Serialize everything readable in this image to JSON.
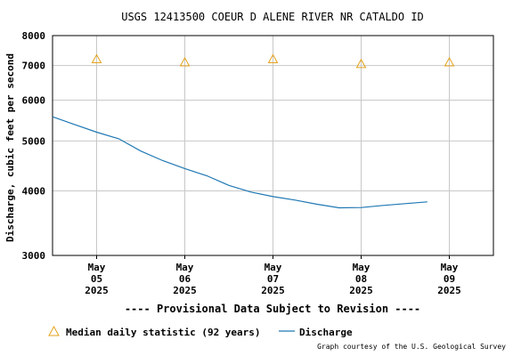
{
  "chart_data": {
    "type": "line",
    "title": "USGS 12413500 COEUR D ALENE RIVER NR CATALDO ID",
    "ylabel": "Discharge, cubic feet per second",
    "yscale": "log",
    "ylim": [
      3000,
      8000
    ],
    "yticks": [
      3000,
      4000,
      5000,
      6000,
      7000,
      8000
    ],
    "ytick_labels": [
      "3000",
      "4000",
      "5000",
      "6000",
      "7000",
      "8000"
    ],
    "xlim": [
      "2025-05-04T12:00",
      "2025-05-09T12:00"
    ],
    "x_ticks": [
      {
        "x": "2025-05-05",
        "label": [
          "May",
          "05",
          "2025"
        ]
      },
      {
        "x": "2025-05-06",
        "label": [
          "May",
          "06",
          "2025"
        ]
      },
      {
        "x": "2025-05-07",
        "label": [
          "May",
          "07",
          "2025"
        ]
      },
      {
        "x": "2025-05-08",
        "label": [
          "May",
          "08",
          "2025"
        ]
      },
      {
        "x": "2025-05-09",
        "label": [
          "May",
          "09",
          "2025"
        ]
      }
    ],
    "grid": true,
    "series": [
      {
        "name": "Median daily statistic (92 years)",
        "marker": "triangle",
        "color": "#e3a21a",
        "points": [
          {
            "x": "2025-05-05",
            "y": 7200
          },
          {
            "x": "2025-05-06",
            "y": 7100
          },
          {
            "x": "2025-05-07",
            "y": 7200
          },
          {
            "x": "2025-05-08",
            "y": 7050
          },
          {
            "x": "2025-05-09",
            "y": 7100
          }
        ]
      },
      {
        "name": "Discharge",
        "marker": "line",
        "color": "#1f78b4",
        "points": [
          {
            "x": "2025-05-04T12:00",
            "y": 5570
          },
          {
            "x": "2025-05-04T18:00",
            "y": 5380
          },
          {
            "x": "2025-05-05T00:00",
            "y": 5200
          },
          {
            "x": "2025-05-05T06:00",
            "y": 5050
          },
          {
            "x": "2025-05-05T12:00",
            "y": 4780
          },
          {
            "x": "2025-05-05T18:00",
            "y": 4580
          },
          {
            "x": "2025-05-06T00:00",
            "y": 4420
          },
          {
            "x": "2025-05-06T06:00",
            "y": 4280
          },
          {
            "x": "2025-05-06T12:00",
            "y": 4100
          },
          {
            "x": "2025-05-06T18:00",
            "y": 3980
          },
          {
            "x": "2025-05-07T00:00",
            "y": 3900
          },
          {
            "x": "2025-05-07T06:00",
            "y": 3840
          },
          {
            "x": "2025-05-07T12:00",
            "y": 3770
          },
          {
            "x": "2025-05-07T18:00",
            "y": 3710
          },
          {
            "x": "2025-05-08T00:00",
            "y": 3715
          },
          {
            "x": "2025-05-08T06:00",
            "y": 3750
          },
          {
            "x": "2025-05-08T12:00",
            "y": 3780
          },
          {
            "x": "2025-05-08T18:00",
            "y": 3810
          }
        ]
      }
    ],
    "legend": {
      "placement": "bottom-left",
      "items": [
        {
          "label": "Median daily statistic (92 years)",
          "icon": "triangle-icon"
        },
        {
          "label": "Discharge",
          "icon": "line-icon"
        }
      ]
    },
    "annotation": "---- Provisional Data Subject to Revision ----",
    "annotation_color": "#dd0000",
    "credit": "Graph courtesy of the U.S. Geological Survey"
  }
}
